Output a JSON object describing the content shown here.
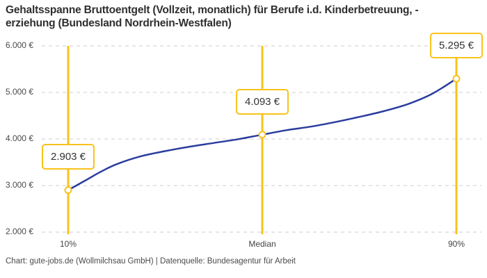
{
  "title": {
    "line1": "Gehaltsspanne Bruttoentgelt (Vollzeit, monatlich) für Berufe i.d. Kinderbetreuung, -",
    "line2": "erziehung (Bundesland Nordrhein-Westfalen)"
  },
  "footer": {
    "text": "Chart: gute-jobs.de (Wollmilchsau GmbH) | Datenquelle: Bundesagentur für Arbeit"
  },
  "colors": {
    "accent_yellow": "#F8C21A",
    "curve_blue": "#2A3C9E",
    "gridline_gray": "#CCCCCC",
    "marker_fill": "#FFFFFF",
    "background": "#FFFFFF",
    "title_text": "#2F2F2F",
    "axis_text": "#4A4A4A",
    "value_text": "#333333"
  },
  "chart_data": {
    "type": "line",
    "title": "Gehaltsspanne Bruttoentgelt (Vollzeit, monatlich) für Berufe i.d. Kinderbetreuung, -erziehung (Bundesland Nordrhein-Westfalen)",
    "xlabel": "",
    "ylabel": "",
    "ylim": [
      2000,
      6000
    ],
    "grid": "horizontal-dashed",
    "legend": "none",
    "y_ticks": [
      {
        "label": "6.000 €",
        "value": 6000
      },
      {
        "label": "5.000 €",
        "value": 5000
      },
      {
        "label": "4.000 €",
        "value": 4000
      },
      {
        "label": "3.000 €",
        "value": 3000
      },
      {
        "label": "2.000 €",
        "value": 2000
      }
    ],
    "x_ticks": [
      "10%",
      "Median",
      "90%"
    ],
    "highlighted_points": [
      {
        "x_label": "10%",
        "percentile": 10,
        "value": 2903,
        "value_label": "2.903 €"
      },
      {
        "x_label": "Median",
        "percentile": 50,
        "value": 4093,
        "value_label": "4.093 €"
      },
      {
        "x_label": "90%",
        "percentile": 90,
        "value": 5295,
        "value_label": "5.295 €"
      }
    ],
    "curve_points_estimated": [
      [
        10,
        2903
      ],
      [
        13.3,
        3095
      ],
      [
        16.7,
        3295
      ],
      [
        20,
        3460
      ],
      [
        25,
        3630
      ],
      [
        30,
        3740
      ],
      [
        35,
        3835
      ],
      [
        40,
        3915
      ],
      [
        45,
        3995
      ],
      [
        50,
        4093
      ],
      [
        55,
        4190
      ],
      [
        60,
        4265
      ],
      [
        65,
        4363
      ],
      [
        70,
        4475
      ],
      [
        75,
        4597
      ],
      [
        80,
        4750
      ],
      [
        85,
        4970
      ],
      [
        90,
        5295
      ]
    ]
  }
}
